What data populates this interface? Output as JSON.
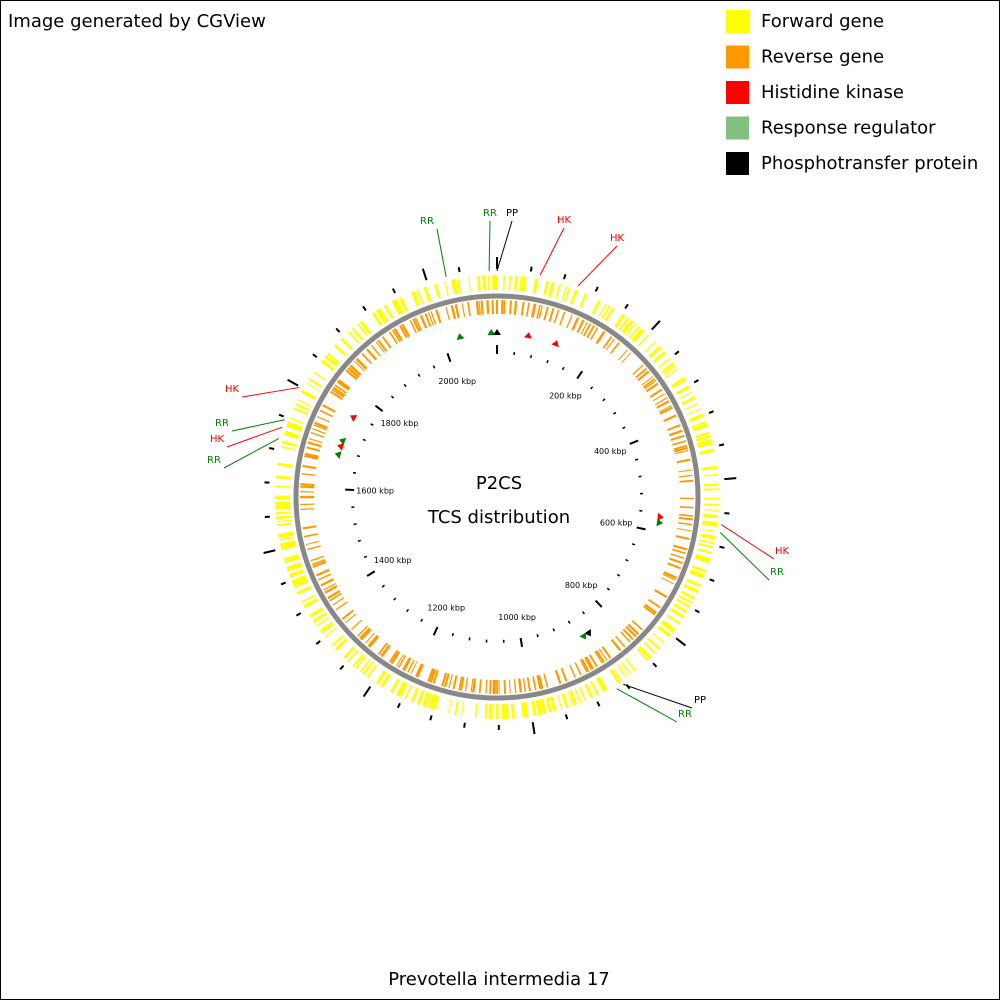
{
  "header": "Image generated by CGView",
  "legend": [
    {
      "label": "Forward gene",
      "color": "#ffff00"
    },
    {
      "label": "Reverse gene",
      "color": "#ff9900"
    },
    {
      "label": "Histidine kinase",
      "color": "#ff0000"
    },
    {
      "label": "Response regulator",
      "color": "#80c080"
    },
    {
      "label": "Phosphotransfer protein",
      "color": "#000000"
    }
  ],
  "center": {
    "title": "P2CS",
    "subtitle": "TCS distribution"
  },
  "footer": "Prevotella intermedia 17",
  "ticks": [
    "200 kbp",
    "400 kbp",
    "600 kbp",
    "800 kbp",
    "1000 kbp",
    "1200 kbp",
    "1400 kbp",
    "1600 kbp",
    "1800 kbp",
    "2000 kbp"
  ],
  "features": [
    {
      "label": "RR",
      "color": "#008000"
    },
    {
      "label": "RR",
      "color": "#008000"
    },
    {
      "label": "PP",
      "color": "#000000"
    },
    {
      "label": "HK",
      "color": "#ff0000"
    },
    {
      "label": "HK",
      "color": "#ff0000"
    },
    {
      "label": "HK",
      "color": "#ff0000"
    },
    {
      "label": "RR",
      "color": "#008000"
    },
    {
      "label": "PP",
      "color": "#000000"
    },
    {
      "label": "RR",
      "color": "#008000"
    },
    {
      "label": "HK",
      "color": "#ff0000"
    },
    {
      "label": "RR",
      "color": "#008000"
    },
    {
      "label": "HK",
      "color": "#ff0000"
    },
    {
      "label": "RR",
      "color": "#008000"
    }
  ]
}
